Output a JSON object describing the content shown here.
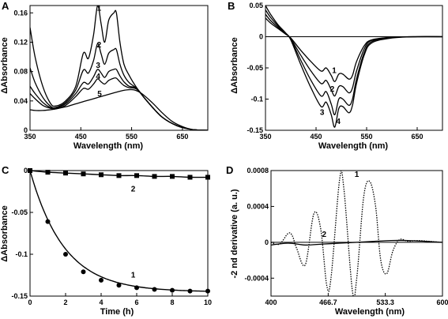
{
  "figure": {
    "panels": [
      {
        "letter": "A",
        "xlabel": "Wavelength (nm)",
        "ylabel": "ΔAbsorbance"
      },
      {
        "letter": "B",
        "xlabel": "Wavelength (nm)",
        "ylabel": "ΔAbsorbance"
      },
      {
        "letter": "C",
        "xlabel": "Time (h)",
        "ylabel": "ΔAbsorbance"
      },
      {
        "letter": "D",
        "xlabel": "Wavelength (nm)",
        "ylabel": "-2 nd derivative (a. u.)"
      }
    ]
  },
  "chart_data": [
    {
      "panel": "A",
      "type": "line",
      "xlabel": "Wavelength (nm)",
      "ylabel": "ΔAbsorbance",
      "xlim": [
        350,
        700
      ],
      "ylim": [
        0,
        0.17
      ],
      "xticks": [
        "350",
        "450",
        "550",
        "650"
      ],
      "xtick_values": [
        350,
        450,
        550,
        650
      ],
      "yticks": [
        "0",
        "0.04",
        "0.08",
        "0.12",
        "0.16"
      ],
      "ytick_values": [
        0,
        0.04,
        0.08,
        0.12,
        0.16
      ],
      "grid": false,
      "series": [
        {
          "label": "1",
          "x": [
            350,
            360,
            375,
            390,
            400,
            420,
            440,
            455,
            465,
            475,
            483,
            490,
            497,
            505,
            515,
            520,
            527,
            535,
            545,
            560,
            580,
            610,
            640,
            670,
            700
          ],
          "y": [
            0.14,
            0.1,
            0.06,
            0.037,
            0.033,
            0.04,
            0.06,
            0.105,
            0.098,
            0.13,
            0.17,
            0.145,
            0.12,
            0.15,
            0.16,
            0.16,
            0.12,
            0.09,
            0.075,
            0.058,
            0.04,
            0.018,
            0.006,
            0.001,
            0
          ]
        },
        {
          "label": "2",
          "x": [
            350,
            360,
            375,
            390,
            400,
            420,
            440,
            455,
            465,
            475,
            483,
            490,
            497,
            505,
            515,
            520,
            527,
            535,
            545,
            560,
            580,
            610,
            640,
            670,
            700
          ],
          "y": [
            0.085,
            0.065,
            0.045,
            0.033,
            0.031,
            0.038,
            0.055,
            0.082,
            0.078,
            0.095,
            0.118,
            0.104,
            0.09,
            0.105,
            0.11,
            0.11,
            0.09,
            0.075,
            0.065,
            0.057,
            0.04,
            0.018,
            0.006,
            0.001,
            0
          ]
        },
        {
          "label": "3",
          "x": [
            350,
            360,
            375,
            390,
            400,
            420,
            440,
            455,
            465,
            475,
            483,
            490,
            497,
            505,
            515,
            520,
            527,
            535,
            545,
            560,
            580,
            610,
            640,
            670,
            700
          ],
          "y": [
            0.06,
            0.05,
            0.038,
            0.031,
            0.03,
            0.036,
            0.05,
            0.065,
            0.063,
            0.073,
            0.083,
            0.078,
            0.072,
            0.08,
            0.083,
            0.083,
            0.074,
            0.066,
            0.06,
            0.057,
            0.04,
            0.018,
            0.006,
            0.001,
            0
          ]
        },
        {
          "label": "4",
          "x": [
            350,
            360,
            375,
            390,
            400,
            420,
            440,
            455,
            465,
            475,
            483,
            490,
            497,
            505,
            515,
            520,
            527,
            535,
            545,
            560,
            580,
            610,
            640,
            670,
            700
          ],
          "y": [
            0.05,
            0.043,
            0.034,
            0.03,
            0.029,
            0.034,
            0.046,
            0.057,
            0.056,
            0.063,
            0.07,
            0.066,
            0.063,
            0.068,
            0.071,
            0.071,
            0.066,
            0.061,
            0.058,
            0.056,
            0.04,
            0.018,
            0.006,
            0.001,
            0
          ]
        },
        {
          "label": "5",
          "x": [
            350,
            360,
            375,
            390,
            400,
            420,
            440,
            460,
            480,
            500,
            520,
            540,
            555,
            570,
            590,
            610,
            630,
            650,
            670,
            700
          ],
          "y": [
            0.028,
            0.027,
            0.027,
            0.028,
            0.029,
            0.032,
            0.036,
            0.04,
            0.044,
            0.048,
            0.052,
            0.055,
            0.055,
            0.05,
            0.038,
            0.024,
            0.012,
            0.005,
            0.001,
            0
          ]
        }
      ]
    },
    {
      "panel": "B",
      "type": "line",
      "xlabel": "Wavelength (nm)",
      "ylabel": "ΔAbsorbance",
      "xlim": [
        350,
        700
      ],
      "ylim": [
        -0.15,
        0.05
      ],
      "xticks": [
        "350",
        "450",
        "550",
        "650"
      ],
      "xtick_values": [
        350,
        450,
        550,
        650
      ],
      "yticks": [
        "-0.15",
        "-0.1",
        "-0.05",
        "0",
        "0.05"
      ],
      "ytick_values": [
        -0.15,
        -0.1,
        -0.05,
        0,
        0.05
      ],
      "grid": false,
      "series": [
        {
          "label": "1",
          "x": [
            350,
            360,
            375,
            390,
            400,
            420,
            440,
            460,
            470,
            480,
            487,
            495,
            503,
            515,
            522,
            530,
            545,
            560,
            600,
            650,
            700
          ],
          "y": [
            0.03,
            0.022,
            0.013,
            0.004,
            -0.002,
            -0.022,
            -0.04,
            -0.055,
            -0.05,
            -0.062,
            -0.072,
            -0.06,
            -0.06,
            -0.068,
            -0.062,
            -0.04,
            -0.015,
            -0.005,
            -0.001,
            0,
            0
          ]
        },
        {
          "label": "2",
          "x": [
            350,
            360,
            375,
            390,
            400,
            420,
            440,
            460,
            470,
            480,
            487,
            495,
            503,
            515,
            522,
            530,
            545,
            560,
            600,
            650,
            700
          ],
          "y": [
            0.036,
            0.026,
            0.015,
            0.005,
            -0.003,
            -0.03,
            -0.055,
            -0.075,
            -0.07,
            -0.085,
            -0.095,
            -0.08,
            -0.08,
            -0.09,
            -0.082,
            -0.055,
            -0.02,
            -0.006,
            -0.001,
            0,
            0
          ]
        },
        {
          "label": "3",
          "x": [
            350,
            360,
            375,
            390,
            400,
            420,
            440,
            460,
            470,
            480,
            487,
            495,
            503,
            515,
            522,
            530,
            545,
            560,
            600,
            650,
            700
          ],
          "y": [
            0.043,
            0.031,
            0.017,
            0.005,
            -0.004,
            -0.038,
            -0.07,
            -0.095,
            -0.088,
            -0.108,
            -0.125,
            -0.1,
            -0.1,
            -0.11,
            -0.1,
            -0.068,
            -0.026,
            -0.008,
            -0.001,
            0,
            0
          ]
        },
        {
          "label": "4",
          "x": [
            350,
            360,
            375,
            390,
            400,
            420,
            440,
            460,
            470,
            480,
            487,
            495,
            503,
            515,
            522,
            530,
            545,
            560,
            600,
            650,
            700
          ],
          "y": [
            0.05,
            0.036,
            0.019,
            0.006,
            -0.005,
            -0.045,
            -0.082,
            -0.112,
            -0.105,
            -0.125,
            -0.145,
            -0.115,
            -0.112,
            -0.122,
            -0.11,
            -0.075,
            -0.03,
            -0.01,
            -0.002,
            0,
            0
          ]
        }
      ],
      "reference_line": 0
    },
    {
      "panel": "C",
      "type": "scatter",
      "xlabel": "Time (h)",
      "ylabel": "ΔAbsorbance",
      "xlim": [
        0,
        10
      ],
      "ylim": [
        -0.15,
        0
      ],
      "xticks": [
        "0",
        "2",
        "4",
        "6",
        "8",
        "10"
      ],
      "xtick_values": [
        0,
        2,
        4,
        6,
        8,
        10
      ],
      "yticks": [
        "-0.15",
        "-0.1",
        "-0.05",
        "0"
      ],
      "ytick_values": [
        -0.15,
        -0.1,
        -0.05,
        0
      ],
      "grid": false,
      "series": [
        {
          "label": "1",
          "marker": "circle",
          "x": [
            0,
            1,
            2,
            3,
            4,
            5,
            6,
            7,
            8,
            9,
            10
          ],
          "y": [
            0,
            -0.061,
            -0.1,
            -0.121,
            -0.131,
            -0.137,
            -0.14,
            -0.142,
            -0.143,
            -0.144,
            -0.144
          ],
          "fit": {
            "a": -0.145,
            "k": 0.52
          }
        },
        {
          "label": "2",
          "marker": "square",
          "x": [
            0,
            1,
            2,
            3,
            4,
            5,
            6,
            7,
            8,
            9,
            10
          ],
          "y": [
            0,
            -0.002,
            -0.003,
            -0.004,
            -0.005,
            -0.006,
            -0.006,
            -0.007,
            -0.007,
            -0.008,
            -0.008
          ]
        }
      ]
    },
    {
      "panel": "D",
      "type": "line",
      "xlabel": "Wavelength (nm)",
      "ylabel": "-2 nd derivative (a. u.)",
      "xlim": [
        400,
        600
      ],
      "ylim": [
        -0.0006,
        0.0008
      ],
      "xticks": [
        "400",
        "466.7",
        "533.3",
        "600"
      ],
      "xtick_values": [
        400,
        466.7,
        533.3,
        600
      ],
      "yticks": [
        "-0.0004",
        "0",
        "0.0004",
        "0.0008"
      ],
      "ytick_values": [
        -0.0004,
        0,
        0.0004,
        0.0008
      ],
      "grid": false,
      "series": [
        {
          "label": "1",
          "style": "dotted",
          "x": [
            400,
            410,
            420,
            425,
            430,
            440,
            450,
            458,
            465,
            470,
            480,
            485,
            495,
            500,
            508,
            515,
            522,
            528,
            535,
            542,
            550,
            560,
            570,
            585,
            600
          ],
          "y": [
            0,
            -2e-05,
            0.0001,
            7e-05,
            -7e-05,
            -0.00025,
            0.00032,
            0.00015,
            -0.00048,
            -0.0004,
            0.0007,
            0.0006,
            -0.00055,
            -0.0004,
            0.0005,
            0.00068,
            0.0004,
            -0.0002,
            -0.00035,
            -0.0001,
            3e-05,
            1e-05,
            2e-05,
            1e-05,
            0
          ]
        },
        {
          "label": "2",
          "style": "solid",
          "x": [
            400,
            420,
            440,
            460,
            480,
            500,
            520,
            540,
            560,
            580,
            600
          ],
          "y": [
            -3e-05,
            -1e-05,
            -3e-05,
            -2e-05,
            -1e-05,
            0,
            1e-05,
            2e-05,
            2e-05,
            1e-05,
            0
          ]
        }
      ],
      "reference_line": 0
    }
  ]
}
